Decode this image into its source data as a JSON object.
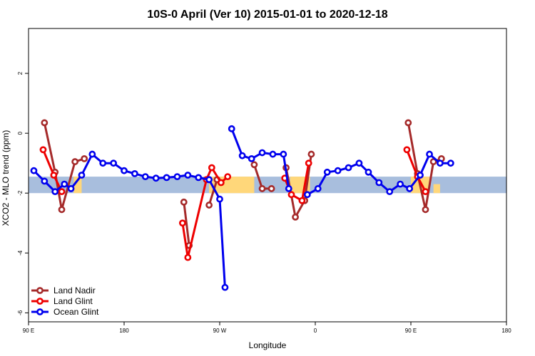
{
  "chart_data": {
    "type": "line",
    "title": "10S-0 April (Ver 10)   2015-01-01 to 2020-12-18",
    "xlabel": "Longitude",
    "ylabel": "XCO2 - MLO trend (ppm)",
    "xlim": [
      -180,
      180
    ],
    "ylim": [
      -6.3,
      3.5
    ],
    "x_ticks": [
      {
        "value": -180,
        "label": "90 E"
      },
      {
        "value": -108,
        "label": "180"
      },
      {
        "value": -36,
        "label": "90 W"
      },
      {
        "value": 36,
        "label": "0"
      },
      {
        "value": 108,
        "label": "90 E"
      },
      {
        "value": 180,
        "label": "180"
      }
    ],
    "y_ticks": [
      {
        "value": -6,
        "label": "-6"
      },
      {
        "value": -4,
        "label": "-4"
      },
      {
        "value": -2,
        "label": "-2"
      },
      {
        "value": 0,
        "label": "0"
      },
      {
        "value": 2,
        "label": "2"
      }
    ],
    "band": {
      "ymin": -2.0,
      "ymax": -1.45,
      "color": "#a8bedd"
    },
    "land_color": "#ffd77a",
    "land_regions": [
      {
        "x": [
          -146,
          -140
        ],
        "y": [
          -1.45,
          -2.0
        ]
      },
      {
        "x": [
          -44,
          -10
        ],
        "y": [
          -1.45,
          -2.0
        ]
      },
      {
        "x": [
          17,
          32
        ],
        "y": [
          -1.45,
          -2.0
        ]
      },
      {
        "x": [
          108,
          122
        ],
        "y": [
          -1.45,
          -2.0
        ]
      },
      {
        "x": [
          125,
          130
        ],
        "y": [
          -1.7,
          -2.0
        ]
      }
    ],
    "series": [
      {
        "name": "Land Nadir",
        "color": "#a52a2a",
        "segments": [
          [
            [
              -168,
              0.35
            ],
            [
              -160,
              -1.3
            ],
            [
              -155,
              -2.55
            ],
            [
              -145,
              -0.95
            ],
            [
              -138,
              -0.85
            ]
          ],
          [
            [
              -10,
              -1.05
            ],
            [
              -4,
              -1.85
            ],
            [
              3,
              -1.85
            ]
          ],
          [
            [
              -44,
              -2.4
            ],
            [
              -38,
              -1.55
            ]
          ],
          [
            [
              -63,
              -2.3
            ],
            [
              -59,
              -3.75
            ]
          ],
          [
            [
              14,
              -1.15
            ],
            [
              21,
              -2.8
            ],
            [
              28,
              -2.25
            ],
            [
              33,
              -0.7
            ]
          ],
          [
            [
              106,
              0.35
            ],
            [
              113,
              -1.35
            ],
            [
              119,
              -2.55
            ],
            [
              125,
              -0.95
            ],
            [
              131,
              -0.85
            ]
          ]
        ]
      },
      {
        "name": "Land Glint",
        "color": "#ee0000",
        "segments": [
          [
            [
              -169,
              -0.55
            ],
            [
              -161,
              -1.4
            ],
            [
              -155,
              -1.95
            ]
          ],
          [
            [
              -64,
              -3.0
            ],
            [
              -60,
              -4.15
            ],
            [
              -46,
              -1.55
            ],
            [
              -42,
              -1.15
            ],
            [
              -35,
              -1.65
            ],
            [
              -30,
              -1.45
            ]
          ],
          [
            [
              13,
              -1.5
            ],
            [
              18,
              -2.05
            ],
            [
              26,
              -2.25
            ],
            [
              31,
              -1.0
            ]
          ],
          [
            [
              105,
              -0.55
            ],
            [
              113,
              -1.45
            ],
            [
              119,
              -1.95
            ]
          ]
        ]
      },
      {
        "name": "Ocean Glint",
        "color": "#0000ee",
        "segments": [
          [
            [
              -176,
              -1.25
            ],
            [
              -168,
              -1.6
            ],
            [
              -160,
              -1.95
            ],
            [
              -153,
              -1.7
            ],
            [
              -148,
              -1.85
            ],
            [
              -140,
              -1.4
            ],
            [
              -132,
              -0.7
            ],
            [
              -124,
              -1.0
            ],
            [
              -116,
              -1.0
            ],
            [
              -108,
              -1.25
            ],
            [
              -100,
              -1.35
            ],
            [
              -92,
              -1.45
            ],
            [
              -84,
              -1.5
            ],
            [
              -76,
              -1.48
            ],
            [
              -68,
              -1.45
            ],
            [
              -60,
              -1.4
            ],
            [
              -52,
              -1.48
            ],
            [
              -44,
              -1.55
            ],
            [
              -36,
              -2.2
            ],
            [
              -32,
              -5.15
            ]
          ],
          [
            [
              -27,
              0.15
            ],
            [
              -19,
              -0.75
            ],
            [
              -12,
              -0.85
            ],
            [
              -4,
              -0.65
            ],
            [
              4,
              -0.7
            ],
            [
              12,
              -0.7
            ],
            [
              16,
              -1.85
            ]
          ],
          [
            [
              30,
              -2.05
            ],
            [
              38,
              -1.85
            ],
            [
              45,
              -1.3
            ],
            [
              53,
              -1.25
            ],
            [
              61,
              -1.15
            ],
            [
              69,
              -1.0
            ],
            [
              76,
              -1.3
            ],
            [
              84,
              -1.65
            ],
            [
              92,
              -1.95
            ],
            [
              100,
              -1.7
            ],
            [
              107,
              -1.85
            ],
            [
              115,
              -1.4
            ],
            [
              122,
              -0.7
            ],
            [
              130,
              -1.0
            ],
            [
              138,
              -1.0
            ]
          ]
        ]
      }
    ],
    "legend": {
      "position": "bottom-left"
    }
  }
}
